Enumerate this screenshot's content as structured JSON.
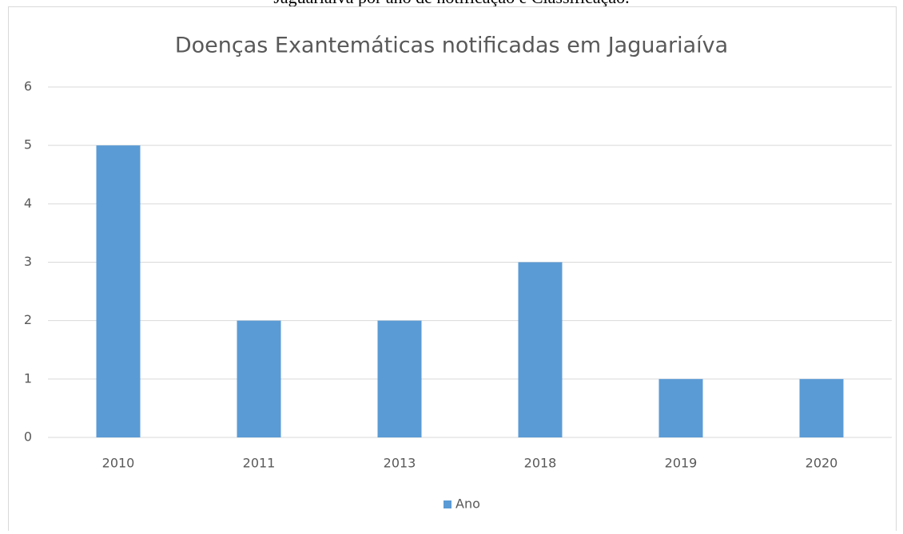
{
  "caption": "Jaguariaíva por ano de notificação e Classificação.",
  "chart_data": {
    "type": "bar",
    "title": "Doenças Exantemáticas notificadas em Jaguariaíva",
    "categories": [
      "2010",
      "2011",
      "2013",
      "2018",
      "2019",
      "2020"
    ],
    "series": [
      {
        "name": "Ano",
        "color": "#5b9bd5",
        "values": [
          5,
          2,
          2,
          3,
          1,
          1
        ]
      }
    ],
    "ylim": [
      0,
      6
    ],
    "yticks": [
      0,
      1,
      2,
      3,
      4,
      5,
      6
    ],
    "grid": true,
    "legend": "bottom"
  }
}
